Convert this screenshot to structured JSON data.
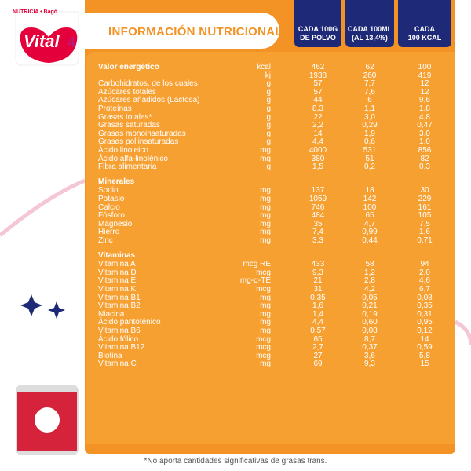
{
  "logo": {
    "brand": "NUTRICIA • Bagó",
    "name": "Vital",
    "stage": "4"
  },
  "header": {
    "title": "INFORMACIÓN NUTRICIONAL",
    "columns": [
      [
        "CADA 100G",
        "DE POLVO"
      ],
      [
        "CADA 100ML",
        "(AL 13,4%)"
      ],
      [
        "CADA",
        "100 KCAL"
      ]
    ]
  },
  "table": {
    "sections": [
      {
        "title": null,
        "rows": [
          [
            "Valor energético",
            "kcal",
            "462",
            "62",
            "100"
          ],
          [
            null,
            "kj",
            "1938",
            "260",
            "419"
          ],
          [
            "Carbohidratos, de los cuales",
            "g",
            "57",
            "7,7",
            "12"
          ],
          [
            "Azúcares totales",
            "g",
            "57",
            "7,6",
            "12"
          ],
          [
            "Azúcares añadidos (Lactosa)",
            "g",
            "44",
            "6",
            "9,6"
          ],
          [
            "Proteínas",
            "g",
            "8,3",
            "1,1",
            "1,8"
          ],
          [
            "Grasas totales*",
            "g",
            "22",
            "3,0",
            "4,8"
          ],
          [
            "Grasas saturadas",
            "g",
            "2,2",
            "0,29",
            "0,47"
          ],
          [
            "Grasas monoinsaturadas",
            "g",
            "14",
            "1,9",
            "3,0"
          ],
          [
            "Grasas poliinsaturadas",
            "g",
            "4,4",
            "0,6",
            "1,0"
          ],
          [
            "Ácido linoleico",
            "mg",
            "4000",
            "531",
            "856"
          ],
          [
            "Ácido alfa-linolénico",
            "mg",
            "380",
            "51",
            "82"
          ],
          [
            "Fibra alimentaria",
            "g",
            "1,5",
            "0,2",
            "0,3"
          ]
        ]
      },
      {
        "title": "Minerales",
        "rows": [
          [
            "Sodio",
            "mg",
            "137",
            "18",
            "30"
          ],
          [
            "Potasio",
            "mg",
            "1059",
            "142",
            "229"
          ],
          [
            "Calcio",
            "mg",
            "746",
            "100",
            "161"
          ],
          [
            "Fósforo",
            "mg",
            "484",
            "65",
            "105"
          ],
          [
            "Magnesio",
            "mg",
            "35",
            "4,7",
            "7,5"
          ],
          [
            "Hierro",
            "mg",
            "7,4",
            "0,99",
            "1,6"
          ],
          [
            "Zinc",
            "mg",
            "3,3",
            "0,44",
            "0,71"
          ]
        ]
      },
      {
        "title": "Vitaminas",
        "rows": [
          [
            "Vitamina A",
            "mcg RE",
            "433",
            "58",
            "94"
          ],
          [
            "Vitamina D",
            "mcg",
            "9,3",
            "1,2",
            "2,0"
          ],
          [
            "Vitamina E",
            "mg-α-TE",
            "21",
            "2,8",
            "4,6"
          ],
          [
            "Vitamina K",
            "mcg",
            "31",
            "4,2",
            "6,7"
          ],
          [
            "Vitamina B1",
            "mg",
            "0,35",
            "0,05",
            "0,08"
          ],
          [
            "Vitamina B2",
            "mg",
            "1,6",
            "0,21",
            "0,35"
          ],
          [
            "Niacina",
            "mg",
            "1,4",
            "0,19",
            "0,31"
          ],
          [
            "Ácido pantoténico",
            "mg",
            "4,4",
            "0,60",
            "0,95"
          ],
          [
            "Vitamina B6",
            "mg",
            "0,57",
            "0,08",
            "0,12"
          ],
          [
            "Ácido fólico",
            "mcg",
            "65",
            "8,7",
            "14"
          ],
          [
            "Vitamina B12",
            "mcg",
            "2,7",
            "0,37",
            "0,59"
          ],
          [
            "Biotina",
            "mcg",
            "27",
            "3,6",
            "5,8"
          ],
          [
            "Vitamina C",
            "mg",
            "69",
            "9,3",
            "15"
          ]
        ]
      }
    ]
  },
  "footer": "*No aporta cantidades significativas de grasas trans."
}
